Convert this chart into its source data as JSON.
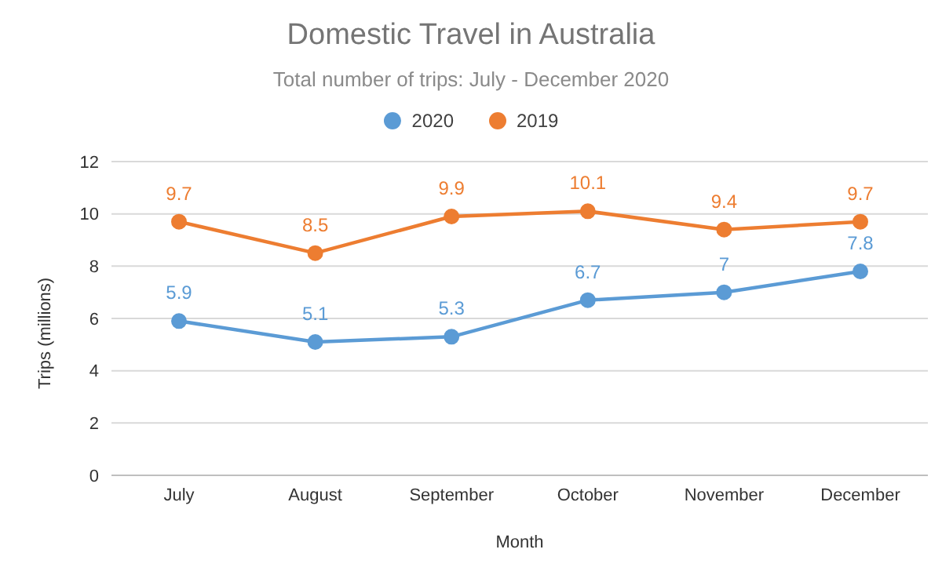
{
  "chart_data": {
    "type": "line",
    "title": "Domestic Travel in Australia",
    "subtitle": "Total number of trips: July - December 2020",
    "xlabel": "Month",
    "ylabel": "Trips (millions)",
    "categories": [
      "July",
      "August",
      "September",
      "October",
      "November",
      "December"
    ],
    "series": [
      {
        "name": "2020",
        "color": "#5b9bd5",
        "values": [
          5.9,
          5.1,
          5.3,
          6.7,
          7,
          7.8
        ]
      },
      {
        "name": "2019",
        "color": "#ed7d31",
        "values": [
          9.7,
          8.5,
          9.9,
          10.1,
          9.4,
          9.7
        ]
      }
    ],
    "ylim": [
      0,
      12
    ],
    "yticks": [
      0,
      2,
      4,
      6,
      8,
      10,
      12
    ],
    "grid": "y",
    "legend": "top",
    "marker": "circle",
    "line_style": "solid",
    "data_labels": true
  }
}
